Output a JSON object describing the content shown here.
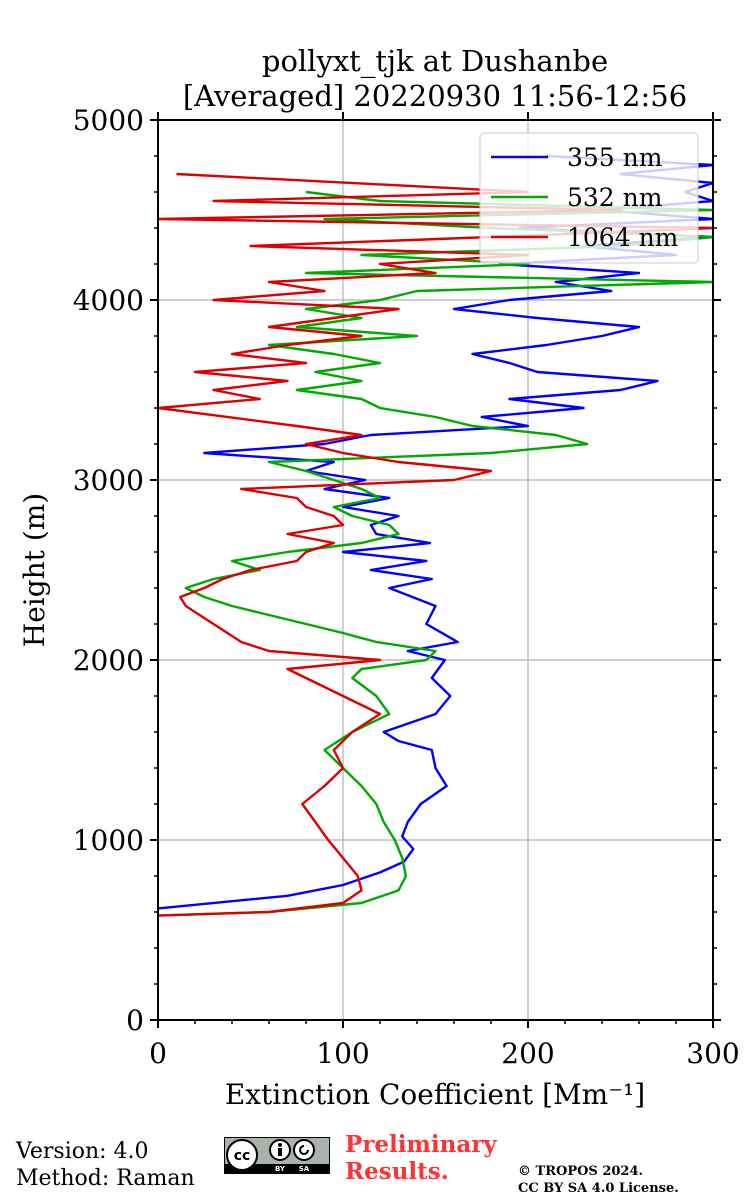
{
  "chart_data": {
    "type": "line",
    "title": "pollyxt_tjk at Dushanbe",
    "subtitle": "[Averaged] 20220930 11:56-12:56",
    "xlabel": "Extinction Coefficient [Mm⁻¹]",
    "ylabel": "Height (m)",
    "xlim": [
      0,
      300
    ],
    "ylim": [
      0,
      5000
    ],
    "xticks": [
      0,
      100,
      200,
      300
    ],
    "yticks": [
      0,
      1000,
      2000,
      3000,
      4000,
      5000
    ],
    "grid": true,
    "legend_position": "top-right",
    "series": [
      {
        "name": "355 nm",
        "color": "#0000ff",
        "x": [
          0,
          70,
          100,
          120,
          133,
          138,
          132,
          135,
          142,
          156,
          150,
          148,
          130,
          122,
          150,
          158,
          148,
          155,
          135,
          162,
          145,
          150,
          125,
          148,
          115,
          145,
          100,
          147,
          118,
          115,
          130,
          100,
          125,
          90,
          112,
          80,
          95,
          25,
          90,
          115,
          200,
          175,
          230,
          190,
          250,
          270,
          205,
          190,
          170,
          210,
          240,
          260,
          205,
          160,
          190,
          245,
          215,
          260,
          185,
          280,
          230,
          300,
          195,
          300,
          240,
          300,
          285,
          300,
          250,
          300,
          210
        ],
        "y": [
          620,
          690,
          750,
          820,
          880,
          950,
          1020,
          1100,
          1200,
          1300,
          1400,
          1500,
          1550,
          1600,
          1700,
          1800,
          1900,
          2000,
          2050,
          2100,
          2200,
          2300,
          2400,
          2450,
          2500,
          2550,
          2600,
          2650,
          2700,
          2750,
          2800,
          2850,
          2900,
          2950,
          3000,
          3050,
          3100,
          3150,
          3200,
          3250,
          3300,
          3350,
          3400,
          3450,
          3500,
          3550,
          3600,
          3650,
          3700,
          3750,
          3800,
          3850,
          3900,
          3950,
          4000,
          4050,
          4100,
          4150,
          4200,
          4250,
          4300,
          4350,
          4400,
          4450,
          4500,
          4550,
          4600,
          4650,
          4700,
          4750,
          4800
        ]
      },
      {
        "name": "532 nm",
        "color": "#00aa00",
        "x": [
          0,
          60,
          110,
          130,
          134,
          132,
          128,
          122,
          118,
          110,
          100,
          90,
          105,
          125,
          118,
          105,
          110,
          145,
          150,
          118,
          100,
          80,
          60,
          40,
          25,
          15,
          30,
          55,
          40,
          70,
          110,
          130,
          125,
          105,
          95,
          120,
          110,
          95,
          80,
          60,
          180,
          232,
          215,
          170,
          150,
          120,
          110,
          75,
          110,
          85,
          120,
          95,
          60,
          140,
          75,
          110,
          80,
          120,
          140,
          300,
          80,
          200,
          110,
          250,
          300,
          180,
          90,
          300,
          120,
          80
        ],
        "y": [
          580,
          600,
          650,
          720,
          800,
          900,
          1000,
          1100,
          1200,
          1300,
          1400,
          1500,
          1600,
          1700,
          1800,
          1900,
          1950,
          2000,
          2050,
          2100,
          2150,
          2200,
          2250,
          2300,
          2350,
          2400,
          2450,
          2500,
          2550,
          2600,
          2650,
          2700,
          2750,
          2800,
          2850,
          2900,
          2950,
          3000,
          3050,
          3100,
          3150,
          3200,
          3250,
          3300,
          3350,
          3400,
          3450,
          3500,
          3550,
          3600,
          3650,
          3700,
          3750,
          3800,
          3850,
          3900,
          3950,
          4000,
          4050,
          4100,
          4150,
          4200,
          4250,
          4300,
          4350,
          4400,
          4450,
          4500,
          4550,
          4600
        ]
      },
      {
        "name": "1064 nm",
        "color": "#dd0000",
        "x": [
          0,
          60,
          100,
          110,
          108,
          100,
          92,
          85,
          78,
          90,
          100,
          95,
          105,
          120,
          100,
          80,
          70,
          120,
          60,
          45,
          30,
          15,
          12,
          25,
          35,
          50,
          75,
          80,
          95,
          70,
          100,
          95,
          80,
          75,
          45,
          160,
          180,
          130,
          100,
          80,
          110,
          75,
          0,
          55,
          30,
          70,
          20,
          80,
          40,
          70,
          110,
          60,
          95,
          130,
          30,
          90,
          60,
          150,
          120,
          200,
          50,
          180,
          300,
          0,
          250,
          30,
          200,
          10
        ],
        "y": [
          580,
          600,
          650,
          720,
          800,
          900,
          1000,
          1100,
          1200,
          1300,
          1400,
          1500,
          1600,
          1700,
          1800,
          1900,
          1950,
          2000,
          2050,
          2100,
          2200,
          2300,
          2350,
          2400,
          2450,
          2500,
          2550,
          2600,
          2650,
          2700,
          2750,
          2800,
          2850,
          2900,
          2950,
          3000,
          3050,
          3100,
          3150,
          3200,
          3250,
          3300,
          3400,
          3450,
          3500,
          3550,
          3600,
          3650,
          3700,
          3750,
          3800,
          3850,
          3900,
          3950,
          4000,
          4050,
          4100,
          4150,
          4200,
          4250,
          4300,
          4350,
          4400,
          4450,
          4500,
          4550,
          4600,
          4700
        ]
      }
    ]
  },
  "footer": {
    "version": "Version: 4.0",
    "method": "Method: Raman",
    "preliminary_line1": "Preliminary",
    "preliminary_line2": "Results.",
    "copyright_line1": "© TROPOS 2024.",
    "copyright_line2": "CC BY SA 4.0 License.",
    "license_badge_cc": "cc",
    "license_badge_by": "BY",
    "license_badge_sa": "SA"
  },
  "colors": {
    "grid": "#b0b0b0",
    "preliminary": "#ff3333"
  }
}
